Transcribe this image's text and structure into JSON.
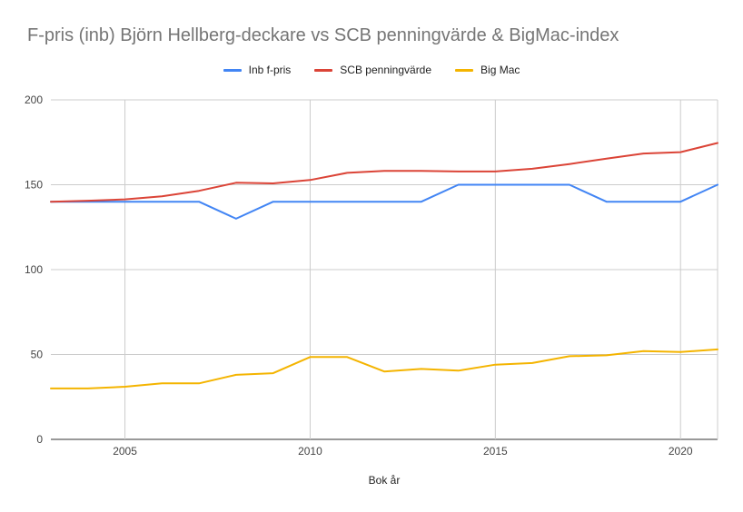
{
  "chart_data": {
    "type": "line",
    "title": "F-pris (inb) Björn Hellberg-deckare vs SCB penningvärde & BigMac-index",
    "xlabel": "Bok år",
    "ylabel": "",
    "xlim": [
      2003,
      2021
    ],
    "ylim": [
      0,
      200
    ],
    "x_ticks": [
      2005,
      2010,
      2015,
      2020
    ],
    "y_ticks": [
      0,
      50,
      100,
      150,
      200
    ],
    "grid": true,
    "legend_position": "top-center",
    "x": [
      2003,
      2004,
      2005,
      2006,
      2007,
      2008,
      2009,
      2010,
      2011,
      2012,
      2013,
      2014,
      2015,
      2016,
      2017,
      2018,
      2019,
      2020,
      2021
    ],
    "series": [
      {
        "name": "Inb f-pris",
        "color": "#4285f4",
        "values": [
          140,
          140,
          140,
          140,
          140,
          130,
          140,
          140,
          140,
          140,
          140,
          150,
          150,
          150,
          150,
          140,
          140,
          140,
          150
        ]
      },
      {
        "name": "SCB penningvärde",
        "color": "#db4437",
        "values": [
          140,
          140.6,
          141.4,
          143.2,
          146.4,
          151.2,
          150.8,
          152.8,
          157,
          158.2,
          158.2,
          157.8,
          157.8,
          159.4,
          162.2,
          165.4,
          168.4,
          169.2,
          174.6
        ]
      },
      {
        "name": "Big Mac",
        "color": "#f4b400",
        "values": [
          30,
          30,
          31,
          33,
          33,
          38,
          39,
          48.5,
          48.5,
          40,
          41.5,
          40.5,
          44,
          45,
          49,
          49.5,
          52,
          51.5,
          53
        ]
      }
    ]
  }
}
